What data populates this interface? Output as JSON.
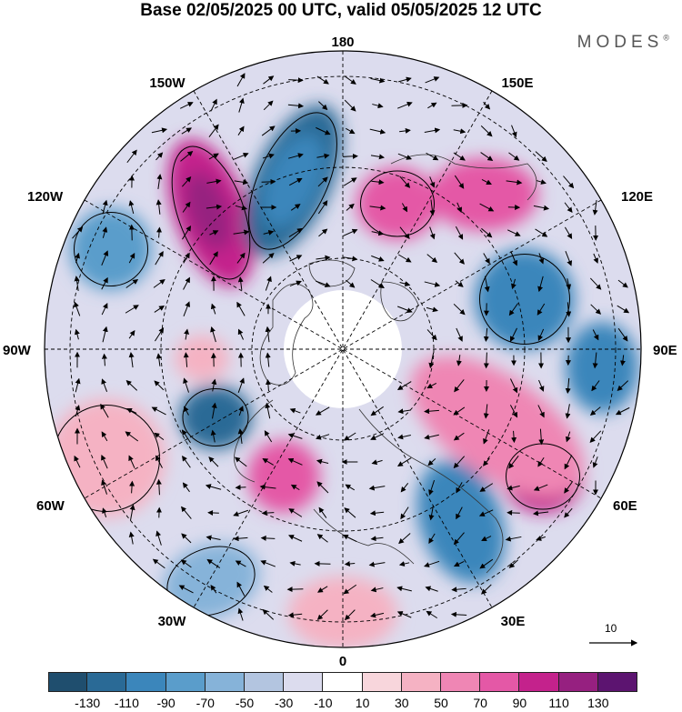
{
  "title": "Base 02/05/2025 00 UTC, valid 05/05/2025 12 UTC",
  "brand": "MODES",
  "brand_mark": "®",
  "longitude_labels": {
    "top": "180",
    "bottom": "0",
    "left": "90W",
    "right": "90E",
    "upper_left": "150W",
    "upper_right": "150E",
    "mid_upper_left": "120W",
    "mid_upper_right": "120E",
    "mid_lower_left": "60W",
    "mid_lower_right": "60E",
    "lower_left": "30W",
    "lower_right": "30E"
  },
  "vector_scale_label": "10",
  "colorbar": {
    "colors": [
      "#1f4e6e",
      "#2a6a96",
      "#3b86bb",
      "#5a9dcb",
      "#86b3d9",
      "#b3c5e0",
      "#dcdcee",
      "#ffffff",
      "#f8d6dc",
      "#f5b2c3",
      "#ef86b4",
      "#e458a6",
      "#c4228c",
      "#962080",
      "#5c1470"
    ],
    "tick_labels": [
      "-130",
      "-110",
      "-90",
      "-70",
      "-50",
      "-30",
      "-10",
      "10",
      "30",
      "50",
      "70",
      "90",
      "110",
      "130"
    ]
  },
  "anomaly_blobs": [
    {
      "color": "#c4228c",
      "cx": -145,
      "cy": -150,
      "rx": 40,
      "ry": 85,
      "rot": -20
    },
    {
      "color": "#962080",
      "cx": -148,
      "cy": -152,
      "rx": 22,
      "ry": 45,
      "rot": -20
    },
    {
      "color": "#2a6a96",
      "cx": -55,
      "cy": -185,
      "rx": 42,
      "ry": 90,
      "rot": 25
    },
    {
      "color": "#3b86bb",
      "cx": -55,
      "cy": -185,
      "rx": 28,
      "ry": 55,
      "rot": 25
    },
    {
      "color": "#e458a6",
      "cx": 60,
      "cy": -160,
      "rx": 45,
      "ry": 40,
      "rot": 0
    },
    {
      "color": "#e458a6",
      "cx": 155,
      "cy": -170,
      "rx": 60,
      "ry": 40,
      "rot": 0
    },
    {
      "color": "#3b86bb",
      "cx": 200,
      "cy": -55,
      "rx": 55,
      "ry": 55,
      "rot": 0
    },
    {
      "color": "#3b86bb",
      "cx": 285,
      "cy": 20,
      "rx": 40,
      "ry": 50,
      "rot": 0
    },
    {
      "color": "#5a9dcb",
      "cx": -255,
      "cy": -110,
      "rx": 45,
      "ry": 45,
      "rot": 0
    },
    {
      "color": "#f5b2c3",
      "cx": -155,
      "cy": 10,
      "rx": 30,
      "ry": 25,
      "rot": 0
    },
    {
      "color": "#2a6a96",
      "cx": -140,
      "cy": 75,
      "rx": 40,
      "ry": 35,
      "rot": 0
    },
    {
      "color": "#e458a6",
      "cx": -65,
      "cy": 140,
      "rx": 40,
      "ry": 40,
      "rot": 0
    },
    {
      "color": "#f5b2c3",
      "cx": -260,
      "cy": 120,
      "rx": 65,
      "ry": 65,
      "rot": 0
    },
    {
      "color": "#3b86bb",
      "cx": 130,
      "cy": 190,
      "rx": 45,
      "ry": 70,
      "rot": -20
    },
    {
      "color": "#c4228c",
      "cx": 220,
      "cy": 140,
      "rx": 45,
      "ry": 40,
      "rot": 0
    },
    {
      "color": "#ef86b4",
      "cx": 170,
      "cy": 85,
      "rx": 110,
      "ry": 55,
      "rot": 35
    },
    {
      "color": "#86b3d9",
      "cx": -145,
      "cy": 255,
      "rx": 55,
      "ry": 40,
      "rot": -20
    },
    {
      "color": "#f5b2c3",
      "cx": 0,
      "cy": 290,
      "rx": 60,
      "ry": 40,
      "rot": 0
    }
  ]
}
